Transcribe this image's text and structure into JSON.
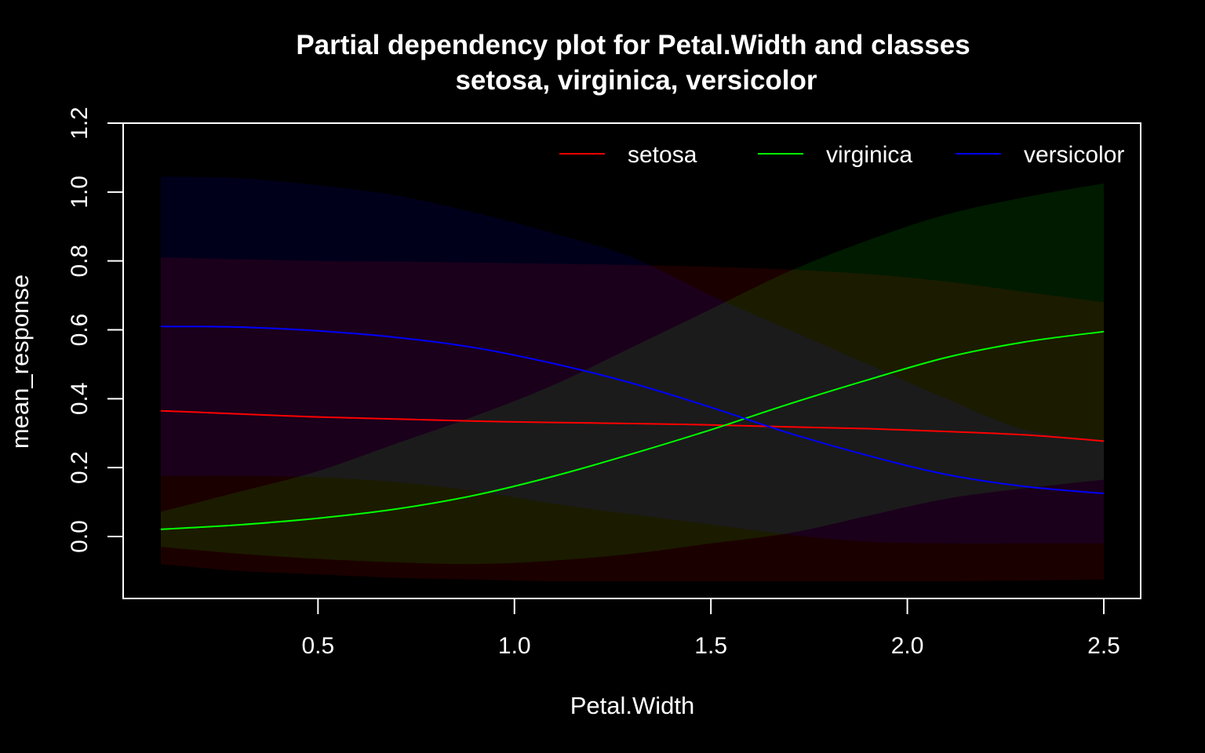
{
  "chart_data": {
    "type": "line",
    "title_line1": "Partial dependency plot for Petal.Width and classes",
    "title_line2": "setosa, virginica, versicolor",
    "xlabel": "Petal.Width",
    "ylabel": "mean_response",
    "xlim": [
      0.1,
      2.5
    ],
    "ylim": [
      -0.13,
      1.2
    ],
    "xticks": [
      0.5,
      1.0,
      1.5,
      2.0,
      2.5
    ],
    "xtick_labels": [
      "0.5",
      "1.0",
      "1.5",
      "2.0",
      "2.5"
    ],
    "yticks": [
      0.0,
      0.2,
      0.4,
      0.6,
      0.8,
      1.0,
      1.2
    ],
    "ytick_labels": [
      "0.0",
      "0.2",
      "0.4",
      "0.6",
      "0.8",
      "1.0",
      "1.2"
    ],
    "legend_position": "top-right",
    "x": [
      0.1,
      0.3,
      0.5,
      0.7,
      0.9,
      1.1,
      1.3,
      1.5,
      1.7,
      1.9,
      2.1,
      2.3,
      2.5
    ],
    "series": [
      {
        "name": "setosa",
        "color": "#ff0000",
        "band_color": "#1c0000",
        "values": [
          0.365,
          0.356,
          0.347,
          0.341,
          0.335,
          0.331,
          0.328,
          0.324,
          0.318,
          0.313,
          0.305,
          0.295,
          0.277
        ],
        "lower": [
          -0.08,
          -0.1,
          -0.11,
          -0.12,
          -0.125,
          -0.13,
          -0.13,
          -0.13,
          -0.13,
          -0.13,
          -0.13,
          -0.128,
          -0.125
        ],
        "upper": [
          0.81,
          0.805,
          0.8,
          0.798,
          0.795,
          0.792,
          0.788,
          0.783,
          0.775,
          0.762,
          0.74,
          0.71,
          0.68
        ]
      },
      {
        "name": "virginica",
        "color": "#00ff00",
        "band_color": "#001c00",
        "values": [
          0.021,
          0.034,
          0.053,
          0.08,
          0.12,
          0.175,
          0.24,
          0.31,
          0.385,
          0.455,
          0.52,
          0.565,
          0.595
        ],
        "lower": [
          -0.03,
          -0.05,
          -0.065,
          -0.075,
          -0.08,
          -0.07,
          -0.05,
          -0.02,
          0.01,
          0.06,
          0.11,
          0.14,
          0.165
        ],
        "upper": [
          0.072,
          0.13,
          0.19,
          0.27,
          0.35,
          0.44,
          0.55,
          0.66,
          0.77,
          0.86,
          0.935,
          0.985,
          1.025
        ]
      },
      {
        "name": "versicolor",
        "color": "#0000ff",
        "band_color": "#00001c",
        "values": [
          0.61,
          0.608,
          0.597,
          0.578,
          0.548,
          0.502,
          0.445,
          0.375,
          0.3,
          0.235,
          0.18,
          0.145,
          0.125
        ],
        "lower": [
          0.175,
          0.176,
          0.172,
          0.158,
          0.132,
          0.095,
          0.064,
          0.035,
          0.005,
          -0.015,
          -0.02,
          -0.02,
          -0.02
        ],
        "upper": [
          1.045,
          1.04,
          1.02,
          0.99,
          0.94,
          0.88,
          0.81,
          0.7,
          0.6,
          0.5,
          0.4,
          0.31,
          0.28
        ]
      }
    ]
  }
}
